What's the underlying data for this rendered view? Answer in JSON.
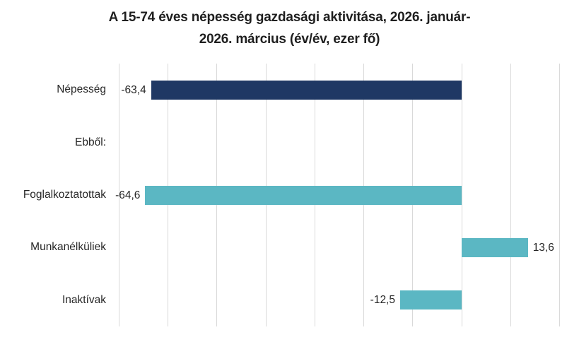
{
  "chart_data": {
    "type": "bar",
    "orientation": "horizontal",
    "title": "A 15-74 éves népesség gazdasági aktivitása, 2026. január-2026. március (év/év, ezer fő)",
    "title_lines": [
      "A 15-74 éves népesség gazdasági aktivitása, 2026. január-",
      "2026. március (év/év, ezer fő)"
    ],
    "categories": [
      "Népesség",
      "Ebből:",
      "Foglalkoztatottak",
      "Munkanélküliek",
      "Inaktívak"
    ],
    "values": [
      -63.4,
      null,
      -64.6,
      13.6,
      -12.5
    ],
    "value_labels": [
      "-63,4",
      "",
      "-64,6",
      "13,6",
      "-12,5"
    ],
    "bar_colors": [
      "#1F3864",
      null,
      "#5BB7C3",
      "#5BB7C3",
      "#5BB7C3"
    ],
    "xlabel": "",
    "ylabel": "",
    "xlim": [
      -70,
      20
    ],
    "grid_step": 10,
    "grid": true,
    "legend": false,
    "colors": {
      "navy": "#1F3864",
      "teal": "#5BB7C3",
      "gridline": "#D9D9D9",
      "text": "#262626",
      "title_text": "#1f1f1f",
      "background": "#FFFFFF"
    }
  }
}
